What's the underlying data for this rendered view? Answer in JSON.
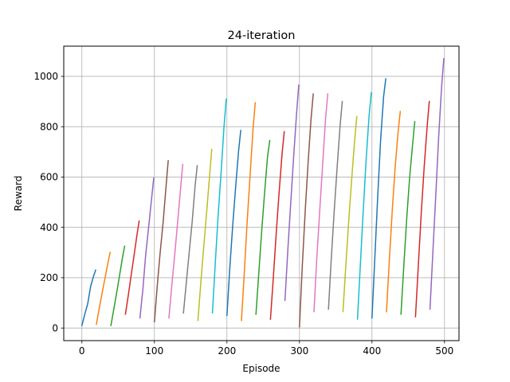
{
  "chart_data": {
    "type": "line",
    "title": "24-iteration",
    "xlabel": "Episode",
    "ylabel": "Reward",
    "xlim": [
      -25,
      520
    ],
    "ylim": [
      -50,
      1120
    ],
    "xticks": [
      0,
      100,
      200,
      300,
      400,
      500
    ],
    "yticks": [
      0,
      200,
      400,
      600,
      800,
      1000
    ],
    "grid": true,
    "colors": [
      "#1f77b4",
      "#ff7f0e",
      "#2ca02c",
      "#d62728",
      "#9467bd",
      "#8c564b",
      "#e377c2",
      "#7f7f7f",
      "#bcbd22",
      "#17becf"
    ],
    "series": [
      {
        "x": [
          0,
          4,
          8,
          12,
          16,
          19
        ],
        "values": [
          10,
          55,
          95,
          165,
          205,
          230
        ]
      },
      {
        "x": [
          20,
          24,
          28,
          32,
          36,
          39
        ],
        "values": [
          15,
          80,
          140,
          200,
          260,
          300
        ]
      },
      {
        "x": [
          40,
          44,
          48,
          52,
          56,
          59
        ],
        "values": [
          10,
          75,
          140,
          210,
          280,
          325
        ]
      },
      {
        "x": [
          60,
          64,
          68,
          72,
          76,
          79
        ],
        "values": [
          55,
          130,
          210,
          290,
          370,
          425
        ]
      },
      {
        "x": [
          80,
          84,
          88,
          92,
          96,
          99
        ],
        "values": [
          40,
          150,
          290,
          400,
          510,
          595
        ]
      },
      {
        "x": [
          100,
          104,
          108,
          112,
          116,
          119
        ],
        "values": [
          25,
          170,
          300,
          420,
          560,
          665
        ]
      },
      {
        "x": [
          120,
          124,
          128,
          132,
          136,
          139
        ],
        "values": [
          40,
          170,
          290,
          420,
          550,
          650
        ]
      },
      {
        "x": [
          140,
          144,
          148,
          152,
          156,
          159
        ],
        "values": [
          60,
          180,
          300,
          420,
          560,
          645
        ]
      },
      {
        "x": [
          160,
          164,
          168,
          172,
          176,
          179
        ],
        "values": [
          30,
          180,
          320,
          460,
          600,
          710
        ]
      },
      {
        "x": [
          180,
          184,
          188,
          192,
          196,
          199
        ],
        "values": [
          60,
          260,
          450,
          620,
          800,
          910
        ]
      },
      {
        "x": [
          200,
          204,
          208,
          212,
          216,
          219
        ],
        "values": [
          50,
          240,
          410,
          560,
          700,
          785
        ]
      },
      {
        "x": [
          220,
          224,
          228,
          232,
          236,
          239
        ],
        "values": [
          30,
          220,
          430,
          610,
          790,
          895
        ]
      },
      {
        "x": [
          240,
          244,
          248,
          252,
          256,
          259
        ],
        "values": [
          55,
          220,
          390,
          540,
          680,
          745
        ]
      },
      {
        "x": [
          260,
          264,
          268,
          272,
          276,
          279
        ],
        "values": [
          35,
          200,
          380,
          540,
          690,
          780
        ]
      },
      {
        "x": [
          280,
          284,
          288,
          292,
          296,
          299
        ],
        "values": [
          110,
          310,
          500,
          680,
          850,
          965
        ]
      },
      {
        "x": [
          300,
          304,
          308,
          312,
          316,
          319
        ],
        "values": [
          5,
          250,
          470,
          660,
          830,
          930
        ]
      },
      {
        "x": [
          320,
          324,
          328,
          332,
          336,
          339
        ],
        "values": [
          65,
          280,
          470,
          650,
          830,
          930
        ]
      },
      {
        "x": [
          340,
          344,
          348,
          352,
          356,
          359
        ],
        "values": [
          75,
          280,
          470,
          640,
          800,
          900
        ]
      },
      {
        "x": [
          360,
          364,
          368,
          372,
          376,
          379
        ],
        "values": [
          65,
          250,
          430,
          590,
          740,
          840
        ]
      },
      {
        "x": [
          380,
          384,
          388,
          392,
          396,
          399
        ],
        "values": [
          35,
          250,
          470,
          670,
          840,
          935
        ]
      },
      {
        "x": [
          400,
          404,
          408,
          412,
          416,
          419
        ],
        "values": [
          40,
          280,
          530,
          750,
          920,
          990
        ]
      },
      {
        "x": [
          420,
          424,
          428,
          432,
          436,
          439
        ],
        "values": [
          65,
          270,
          470,
          640,
          780,
          860
        ]
      },
      {
        "x": [
          440,
          444,
          448,
          452,
          456,
          459
        ],
        "values": [
          55,
          250,
          440,
          600,
          730,
          820
        ]
      },
      {
        "x": [
          460,
          464,
          468,
          472,
          476,
          479
        ],
        "values": [
          45,
          250,
          460,
          640,
          800,
          900
        ]
      },
      {
        "x": [
          480,
          484,
          488,
          492,
          496,
          499
        ],
        "values": [
          75,
          300,
          530,
          760,
          960,
          1070
        ]
      }
    ]
  }
}
